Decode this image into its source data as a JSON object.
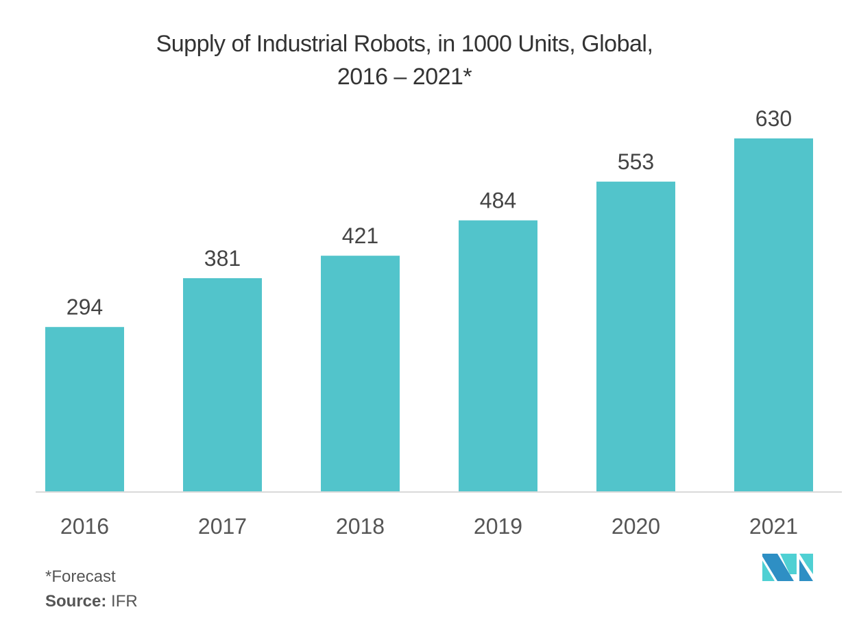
{
  "chart_data": {
    "type": "bar",
    "title": "Supply of Industrial Robots, in 1000 Units, Global, 2016 – 2021*",
    "title_lines": [
      "Supply of Industrial Robots, in 1000 Units, Global,",
      "2016 – 2021*"
    ],
    "categories": [
      "2016",
      "2017",
      "2018",
      "2019",
      "2020",
      "2021"
    ],
    "values": [
      294,
      381,
      421,
      484,
      553,
      630
    ],
    "data_labels": [
      "294",
      "381",
      "421",
      "484",
      "553",
      "630"
    ],
    "xlabel": "",
    "ylabel": "",
    "ylim": [
      0,
      630
    ],
    "grid": false,
    "legend": "none",
    "bar_color": "#52c4cb",
    "axis_color": "#d9d9d9"
  },
  "footnote": "*Forecast",
  "source": {
    "label": "Source:",
    "value": "IFR"
  },
  "logo": {
    "name": "mordor-intelligence-logo",
    "colors": [
      "#2e8fc4",
      "#4fd0d3"
    ]
  }
}
